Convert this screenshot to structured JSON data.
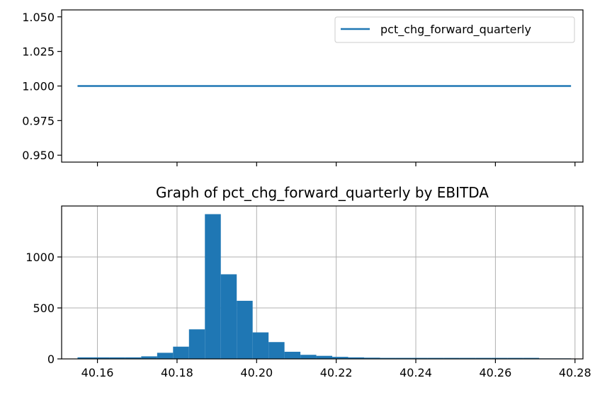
{
  "chart_data": [
    {
      "type": "line",
      "title": "",
      "xlabel": "",
      "ylabel": "",
      "ylim": [
        0.945,
        1.055
      ],
      "xlim": [
        40.151,
        40.282
      ],
      "y_ticks": [
        "0.950",
        "0.975",
        "1.000",
        "1.025",
        "1.050"
      ],
      "y_tick_values": [
        0.95,
        0.975,
        1.0,
        1.025,
        1.05
      ],
      "x_tick_values": [
        40.16,
        40.18,
        40.2,
        40.22,
        40.24,
        40.26,
        40.28
      ],
      "x_tick_labels_shown": false,
      "grid": false,
      "legend": {
        "location": "upper right"
      },
      "series": [
        {
          "name": "pct_chg_forward_quarterly",
          "color": "#1f77b4",
          "x": [
            40.155,
            40.279
          ],
          "y": [
            1.0,
            1.0
          ]
        }
      ]
    },
    {
      "type": "bar",
      "title": "Graph of pct_chg_forward_quarterly by EBITDA",
      "xlabel": "",
      "ylabel": "",
      "xlim": [
        40.151,
        40.282
      ],
      "ylim": [
        0,
        1500
      ],
      "x_ticks": [
        "40.16",
        "40.18",
        "40.20",
        "40.22",
        "40.24",
        "40.26",
        "40.28"
      ],
      "x_tick_values": [
        40.16,
        40.18,
        40.2,
        40.22,
        40.24,
        40.26,
        40.28
      ],
      "y_ticks": [
        "0",
        "500",
        "1000"
      ],
      "y_tick_values": [
        0,
        500,
        1000
      ],
      "grid": true,
      "color": "#1f77b4",
      "bin_edges": [
        40.155,
        40.159,
        40.163,
        40.167,
        40.171,
        40.175,
        40.179,
        40.183,
        40.187,
        40.191,
        40.195,
        40.199,
        40.203,
        40.207,
        40.211,
        40.215,
        40.219,
        40.223,
        40.227,
        40.231,
        40.235,
        40.239,
        40.243,
        40.247,
        40.251,
        40.255,
        40.259,
        40.263,
        40.267,
        40.271,
        40.275,
        40.279
      ],
      "values": [
        15,
        15,
        15,
        15,
        25,
        60,
        120,
        290,
        1420,
        830,
        570,
        260,
        165,
        70,
        40,
        30,
        20,
        15,
        12,
        10,
        10,
        10,
        10,
        10,
        10,
        10,
        10,
        10,
        10,
        5,
        5
      ]
    }
  ]
}
